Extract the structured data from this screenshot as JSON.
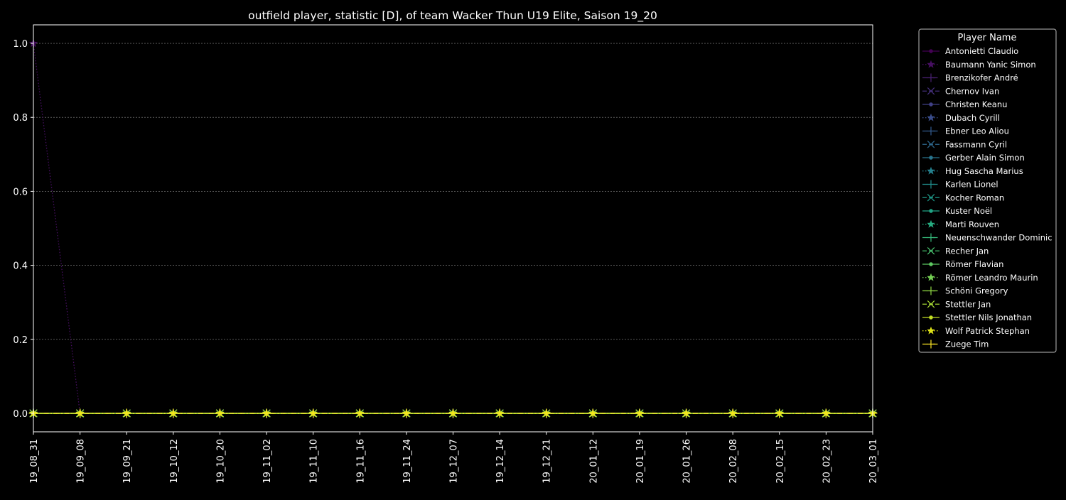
{
  "chart_data": {
    "type": "line",
    "title": "outfield player, statistic [D], of team Wacker Thun U19 Elite, Saison 19_20",
    "xlabel": "",
    "ylabel": "",
    "ylim": [
      -0.05,
      1.05
    ],
    "yticks": [
      "0.0",
      "0.2",
      "0.4",
      "0.6",
      "0.8",
      "1.0"
    ],
    "grid": true,
    "legend_title": "Player Name",
    "legend_position": "outside-right",
    "background": "#000000",
    "x": [
      "19_08_31",
      "19_09_08",
      "19_09_21",
      "19_10_12",
      "19_10_20",
      "19_11_02",
      "19_11_10",
      "19_11_16",
      "19_11_24",
      "19_12_07",
      "19_12_14",
      "19_12_21",
      "20_01_12",
      "20_01_19",
      "20_01_26",
      "20_02_08",
      "20_02_15",
      "20_02_23",
      "20_03_01"
    ],
    "series": [
      {
        "name": "Antonietti Claudio",
        "color": "#440154",
        "marker": "o",
        "linestyle": "solid",
        "values": [
          0,
          0,
          0,
          0,
          0,
          0,
          0,
          0,
          0,
          0,
          0,
          0,
          0,
          0,
          0,
          0,
          0,
          0,
          0
        ]
      },
      {
        "name": "Baumann Yanic Simon",
        "color": "#470f62",
        "marker": "*",
        "linestyle": "dotted",
        "values": [
          1,
          0,
          0,
          0,
          0,
          0,
          0,
          0,
          0,
          0,
          0,
          0,
          0,
          0,
          0,
          0,
          0,
          0,
          0
        ]
      },
      {
        "name": "Brenzikofer André",
        "color": "#482071",
        "marker": "+",
        "linestyle": "dashdot",
        "values": [
          0,
          0,
          0,
          0,
          0,
          0,
          0,
          0,
          0,
          0,
          0,
          0,
          0,
          0,
          0,
          0,
          0,
          0,
          0
        ]
      },
      {
        "name": "Chernov Ivan",
        "color": "#45307d",
        "marker": "x",
        "linestyle": "dashed",
        "values": [
          0,
          0,
          0,
          0,
          0,
          0,
          0,
          0,
          0,
          0,
          0,
          0,
          0,
          0,
          0,
          0,
          0,
          0,
          0
        ]
      },
      {
        "name": "Christen Keanu",
        "color": "#404086",
        "marker": "o",
        "linestyle": "solid",
        "values": [
          0,
          0,
          0,
          0,
          0,
          0,
          0,
          0,
          0,
          0,
          0,
          0,
          0,
          0,
          0,
          0,
          0,
          0,
          0
        ]
      },
      {
        "name": "Dubach Cyrill",
        "color": "#3a4d8b",
        "marker": "*",
        "linestyle": "dotted",
        "values": [
          0,
          0,
          0,
          0,
          0,
          0,
          0,
          0,
          0,
          0,
          0,
          0,
          0,
          0,
          0,
          0,
          0,
          0,
          0
        ]
      },
      {
        "name": "Ebner Leo Aliou",
        "color": "#335b8e",
        "marker": "+",
        "linestyle": "dashdot",
        "values": [
          0,
          0,
          0,
          0,
          0,
          0,
          0,
          0,
          0,
          0,
          0,
          0,
          0,
          0,
          0,
          0,
          0,
          0,
          0
        ]
      },
      {
        "name": "Fassmann Cyril",
        "color": "#2e688e",
        "marker": "x",
        "linestyle": "dashed",
        "values": [
          0,
          0,
          0,
          0,
          0,
          0,
          0,
          0,
          0,
          0,
          0,
          0,
          0,
          0,
          0,
          0,
          0,
          0,
          0
        ]
      },
      {
        "name": "Gerber Alain Simon",
        "color": "#29758e",
        "marker": "o",
        "linestyle": "solid",
        "values": [
          0,
          0,
          0,
          0,
          0,
          0,
          0,
          0,
          0,
          0,
          0,
          0,
          0,
          0,
          0,
          0,
          0,
          0,
          0
        ]
      },
      {
        "name": "Hug Sascha Marius",
        "color": "#25818e",
        "marker": "*",
        "linestyle": "dotted",
        "values": [
          0,
          0,
          0,
          0,
          0,
          0,
          0,
          0,
          0,
          0,
          0,
          0,
          0,
          0,
          0,
          0,
          0,
          0,
          0
        ]
      },
      {
        "name": "Karlen Lionel",
        "color": "#218e8d",
        "marker": "+",
        "linestyle": "dashdot",
        "values": [
          0,
          0,
          0,
          0,
          0,
          0,
          0,
          0,
          0,
          0,
          0,
          0,
          0,
          0,
          0,
          0,
          0,
          0,
          0
        ]
      },
      {
        "name": "Kocher Roman",
        "color": "#1f9a8a",
        "marker": "x",
        "linestyle": "dashed",
        "values": [
          0,
          0,
          0,
          0,
          0,
          0,
          0,
          0,
          0,
          0,
          0,
          0,
          0,
          0,
          0,
          0,
          0,
          0,
          0
        ]
      },
      {
        "name": "Kuster Noël",
        "color": "#20a485",
        "marker": "o",
        "linestyle": "solid",
        "values": [
          0,
          0,
          0,
          0,
          0,
          0,
          0,
          0,
          0,
          0,
          0,
          0,
          0,
          0,
          0,
          0,
          0,
          0,
          0
        ]
      },
      {
        "name": "Marti Rouven",
        "color": "#27ad81",
        "marker": "*",
        "linestyle": "dotted",
        "values": [
          0,
          0,
          0,
          0,
          0,
          0,
          0,
          0,
          0,
          0,
          0,
          0,
          0,
          0,
          0,
          0,
          0,
          0,
          0
        ]
      },
      {
        "name": "Neuenschwander Dominic",
        "color": "#35b779",
        "marker": "+",
        "linestyle": "dashdot",
        "values": [
          0,
          0,
          0,
          0,
          0,
          0,
          0,
          0,
          0,
          0,
          0,
          0,
          0,
          0,
          0,
          0,
          0,
          0,
          0
        ]
      },
      {
        "name": "Recher Jan",
        "color": "#48c16e",
        "marker": "x",
        "linestyle": "dashed",
        "values": [
          0,
          0,
          0,
          0,
          0,
          0,
          0,
          0,
          0,
          0,
          0,
          0,
          0,
          0,
          0,
          0,
          0,
          0,
          0
        ]
      },
      {
        "name": "Römer Flavian",
        "color": "#5ec962",
        "marker": "o",
        "linestyle": "solid",
        "values": [
          0,
          0,
          0,
          0,
          0,
          0,
          0,
          0,
          0,
          0,
          0,
          0,
          0,
          0,
          0,
          0,
          0,
          0,
          0
        ]
      },
      {
        "name": "Römer Leandro Maurin",
        "color": "#75d054",
        "marker": "*",
        "linestyle": "dotted",
        "values": [
          0,
          0,
          0,
          0,
          0,
          0,
          0,
          0,
          0,
          0,
          0,
          0,
          0,
          0,
          0,
          0,
          0,
          0,
          0
        ]
      },
      {
        "name": "Schöni Gregory",
        "color": "#8fd744",
        "marker": "+",
        "linestyle": "dashdot",
        "values": [
          0,
          0,
          0,
          0,
          0,
          0,
          0,
          0,
          0,
          0,
          0,
          0,
          0,
          0,
          0,
          0,
          0,
          0,
          0
        ]
      },
      {
        "name": "Stettler Jan",
        "color": "#a8db34",
        "marker": "x",
        "linestyle": "dashed",
        "values": [
          0,
          0,
          0,
          0,
          0,
          0,
          0,
          0,
          0,
          0,
          0,
          0,
          0,
          0,
          0,
          0,
          0,
          0,
          0
        ]
      },
      {
        "name": "Stettler Nils Jonathan",
        "color": "#c2df23",
        "marker": "o",
        "linestyle": "solid",
        "values": [
          0,
          0,
          0,
          0,
          0,
          0,
          0,
          0,
          0,
          0,
          0,
          0,
          0,
          0,
          0,
          0,
          0,
          0,
          0
        ]
      },
      {
        "name": "Wolf Patrick Stephan",
        "color": "#dfe318",
        "marker": "*",
        "linestyle": "dotted",
        "values": [
          0,
          0,
          0,
          0,
          0,
          0,
          0,
          0,
          0,
          0,
          0,
          0,
          0,
          0,
          0,
          0,
          0,
          0,
          0
        ]
      },
      {
        "name": "Zuege Tim",
        "color": "#fde725",
        "marker": "+",
        "linestyle": "dashdot",
        "values": [
          0,
          0,
          0,
          0,
          0,
          0,
          0,
          0,
          0,
          0,
          0,
          0,
          0,
          0,
          0,
          0,
          0,
          0,
          0
        ]
      }
    ]
  }
}
